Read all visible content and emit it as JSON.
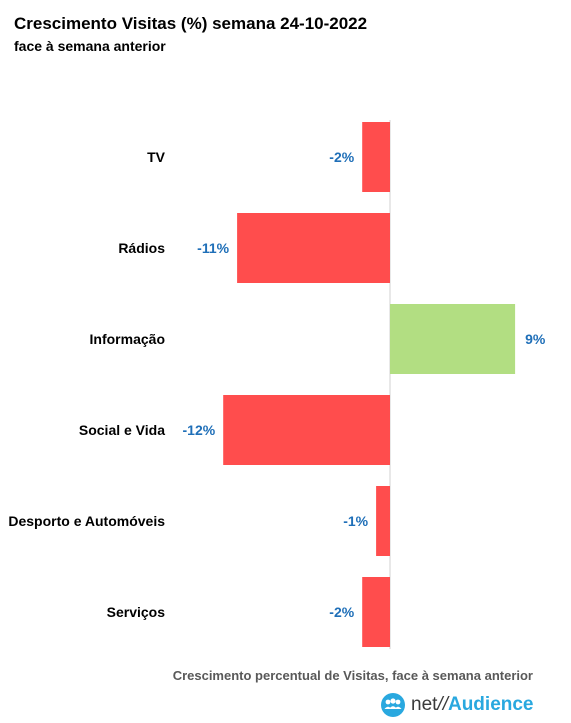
{
  "chart_data": {
    "type": "bar",
    "orientation": "horizontal",
    "title": "Crescimento Visitas (%) semana 24-10-2022",
    "subtitle": "face à semana anterior",
    "xlabel": "Crescimento percentual de Visitas, face à semana anterior",
    "categories": [
      "TV",
      "Rádios",
      "Informação",
      "Social e Vida",
      "Desporto e Automóveis",
      "Serviços"
    ],
    "values": [
      -2,
      -11,
      9,
      -12,
      -1,
      -2
    ],
    "value_labels": [
      "-2%",
      "-11%",
      "9%",
      "-12%",
      "-1%",
      "-2%"
    ],
    "xlim": [
      -12,
      9
    ],
    "grid": false,
    "colors": {
      "negative": "#ff4d4d",
      "positive": "#b2de82",
      "value_label": "#1f6fb8",
      "axis": "#d0d0d0"
    }
  },
  "logo": {
    "net": "net",
    "slash": "//",
    "audience": "Audience"
  }
}
